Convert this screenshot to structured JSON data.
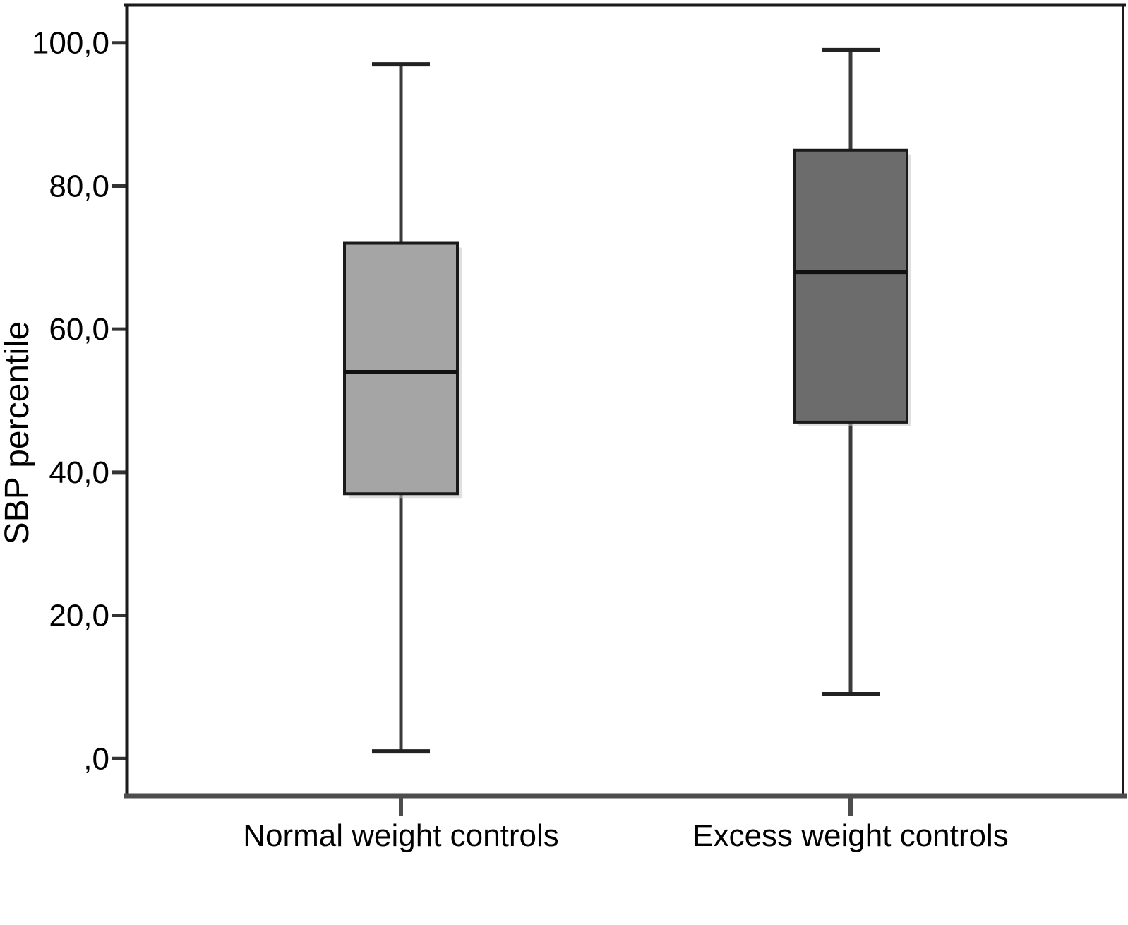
{
  "chart_data": {
    "type": "boxplot",
    "title": "",
    "ylabel": "SBP percentile",
    "xlabel": "",
    "categories": [
      "Normal weight controls",
      "Excess weight controls"
    ],
    "yticks": [
      {
        "value": 0,
        "label": ",0"
      },
      {
        "value": 20,
        "label": "20,0"
      },
      {
        "value": 40,
        "label": "40,0"
      },
      {
        "value": 60,
        "label": "60,0"
      },
      {
        "value": 80,
        "label": "80,0"
      },
      {
        "value": 100,
        "label": "100,0"
      }
    ],
    "ylim": [
      -5.5,
      105.5
    ],
    "grid": false,
    "legend": "none",
    "series": [
      {
        "name": "Normal weight controls",
        "whisker_low": 1,
        "q1": 37,
        "median": 54,
        "q3": 72,
        "whisker_high": 97,
        "fill": "#a5a5a5"
      },
      {
        "name": "Excess weight controls",
        "whisker_low": 9,
        "q1": 47,
        "median": 68,
        "q3": 85,
        "whisker_high": 99,
        "fill": "#6c6c6c"
      }
    ],
    "colors": {
      "box_border": "#1a1a1a",
      "median_line": "#111111",
      "whisker_stem": "#3a3a3a",
      "whisker_cap": "#222222",
      "frame": "#1a1a1a",
      "axis_bottom": "#4d4d4d",
      "tick": "#333333",
      "shadow": "#c4c4c4",
      "text": "#000000",
      "background": "#ffffff"
    }
  }
}
